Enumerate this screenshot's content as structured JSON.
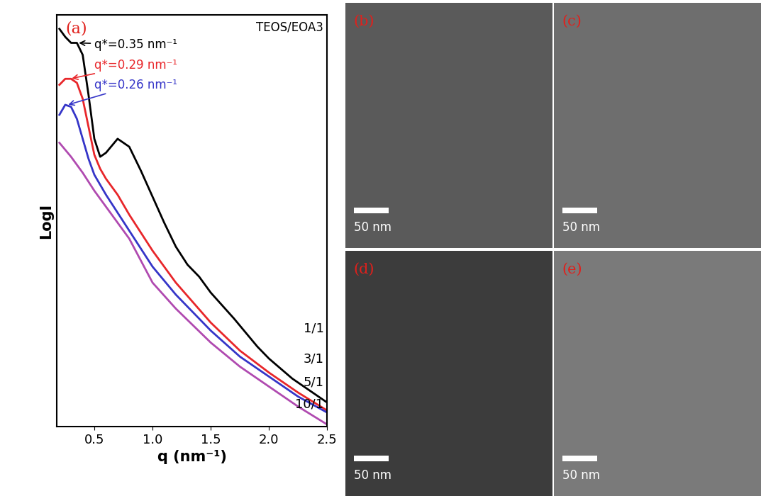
{
  "chart_data": {
    "type": "line",
    "title": "TEOS/EOA3",
    "panel_label": "(a)",
    "panel_label_color": "#e0201c",
    "xlabel": "q (nm⁻¹)",
    "ylabel": "LogI",
    "xlim": [
      0.18,
      2.5
    ],
    "xticks": [
      {
        "value": 0.5,
        "label": "0.5"
      },
      {
        "value": 1.0,
        "label": "1.0"
      },
      {
        "value": 1.5,
        "label": "1.5"
      },
      {
        "value": 2.0,
        "label": "2.0"
      },
      {
        "value": 2.5,
        "label": "2.5"
      }
    ],
    "ylim": [
      0,
      10.3
    ],
    "yticks": [],
    "tick_labels": "x",
    "grid": false,
    "series": [
      {
        "name": "1/1",
        "color": "#000000",
        "annotation": {
          "text": "q*=0.35 nm⁻¹",
          "x": 0.35
        },
        "x": [
          0.2,
          0.25,
          0.3,
          0.35,
          0.4,
          0.45,
          0.5,
          0.55,
          0.6,
          0.7,
          0.8,
          0.9,
          1.0,
          1.1,
          1.2,
          1.3,
          1.4,
          1.5,
          1.7,
          1.9,
          2.0,
          2.2,
          2.5
        ],
        "values": [
          9.95,
          9.75,
          9.6,
          9.6,
          9.3,
          8.3,
          7.2,
          6.75,
          6.85,
          7.2,
          7.0,
          6.4,
          5.75,
          5.1,
          4.5,
          4.05,
          3.75,
          3.35,
          2.7,
          2.0,
          1.7,
          1.2,
          0.6
        ]
      },
      {
        "name": "3/1",
        "color": "#e8262a",
        "annotation": {
          "text": "q*=0.29 nm⁻¹",
          "x": 0.29
        },
        "x": [
          0.2,
          0.25,
          0.3,
          0.35,
          0.4,
          0.45,
          0.5,
          0.55,
          0.6,
          0.7,
          0.8,
          1.0,
          1.2,
          1.5,
          1.75,
          2.0,
          2.25,
          2.5
        ],
        "values": [
          8.55,
          8.7,
          8.7,
          8.6,
          8.2,
          7.5,
          6.8,
          6.45,
          6.2,
          5.8,
          5.3,
          4.4,
          3.6,
          2.6,
          1.9,
          1.35,
          0.85,
          0.4
        ]
      },
      {
        "name": "5/1",
        "color": "#3535c8",
        "annotation": {
          "text": "q*=0.26 nm⁻¹",
          "x": 0.26
        },
        "x": [
          0.2,
          0.25,
          0.3,
          0.35,
          0.4,
          0.45,
          0.5,
          0.55,
          0.6,
          0.7,
          0.8,
          1.0,
          1.2,
          1.5,
          1.75,
          2.0,
          2.25,
          2.5
        ],
        "values": [
          7.8,
          8.05,
          8.0,
          7.7,
          7.2,
          6.7,
          6.3,
          6.05,
          5.8,
          5.35,
          4.9,
          4.0,
          3.3,
          2.4,
          1.75,
          1.25,
          0.75,
          0.35
        ]
      },
      {
        "name": "10/1",
        "color": "#b04ab0",
        "x": [
          0.2,
          0.3,
          0.4,
          0.5,
          0.6,
          0.7,
          0.8,
          1.0,
          1.2,
          1.5,
          1.75,
          2.0,
          2.25,
          2.5
        ],
        "values": [
          7.1,
          6.75,
          6.35,
          5.9,
          5.5,
          5.1,
          4.7,
          3.6,
          2.95,
          2.1,
          1.5,
          1.0,
          0.5,
          0.05
        ]
      }
    ]
  },
  "images": [
    {
      "label": "(b)",
      "scale_bar": "50 nm"
    },
    {
      "label": "(c)",
      "scale_bar": "50 nm"
    },
    {
      "label": "(d)",
      "scale_bar": "50 nm"
    },
    {
      "label": "(e)",
      "scale_bar": "50 nm"
    }
  ]
}
